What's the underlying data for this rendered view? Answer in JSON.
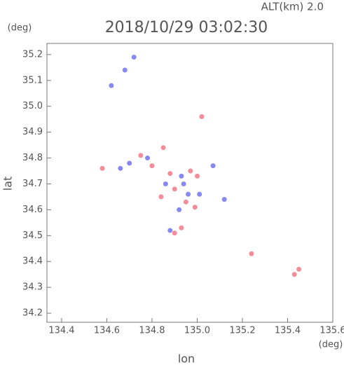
{
  "chart_data": {
    "type": "scatter",
    "title": "2018/10/29 03:02:30",
    "subtitle": "ALT(km) 2.0",
    "x_label": "lon",
    "y_label": "lat",
    "x_unit": "(deg)",
    "y_unit": "(deg)",
    "xlim": [
      134.335,
      135.6
    ],
    "ylim": [
      34.165,
      35.243
    ],
    "xticks": [
      134.4,
      134.6,
      134.8,
      {
        "value": 135,
        "label": "135.0"
      },
      135.2,
      135.4,
      135.6
    ],
    "yticks": [
      34.2,
      34.3,
      34.4,
      34.5,
      34.6,
      34.7,
      34.8,
      34.9,
      {
        "value": 35,
        "label": "35.0"
      },
      35.1,
      35.2
    ],
    "series": [
      {
        "color": "#f07080",
        "x": [
          134.58,
          134.85,
          134.84,
          135.02,
          135.0,
          134.97,
          134.9,
          134.95,
          134.99,
          134.93,
          134.9,
          135.24,
          135.43,
          135.45,
          134.88,
          134.8,
          134.75
        ],
        "values": [
          34.76,
          34.84,
          34.65,
          34.96,
          34.73,
          34.75,
          34.68,
          34.63,
          34.61,
          34.53,
          34.51,
          34.43,
          34.35,
          34.37,
          34.74,
          34.77,
          34.81
        ]
      },
      {
        "color": "#6a6af0",
        "x": [
          134.72,
          134.68,
          134.62,
          134.66,
          134.7,
          134.78,
          134.93,
          134.96,
          135.01,
          135.12,
          134.92,
          134.88,
          134.86,
          134.94,
          135.07
        ],
        "values": [
          35.19,
          35.14,
          35.08,
          34.76,
          34.78,
          34.8,
          34.73,
          34.66,
          34.66,
          34.64,
          34.6,
          34.52,
          34.7,
          34.7,
          34.77
        ]
      }
    ]
  }
}
